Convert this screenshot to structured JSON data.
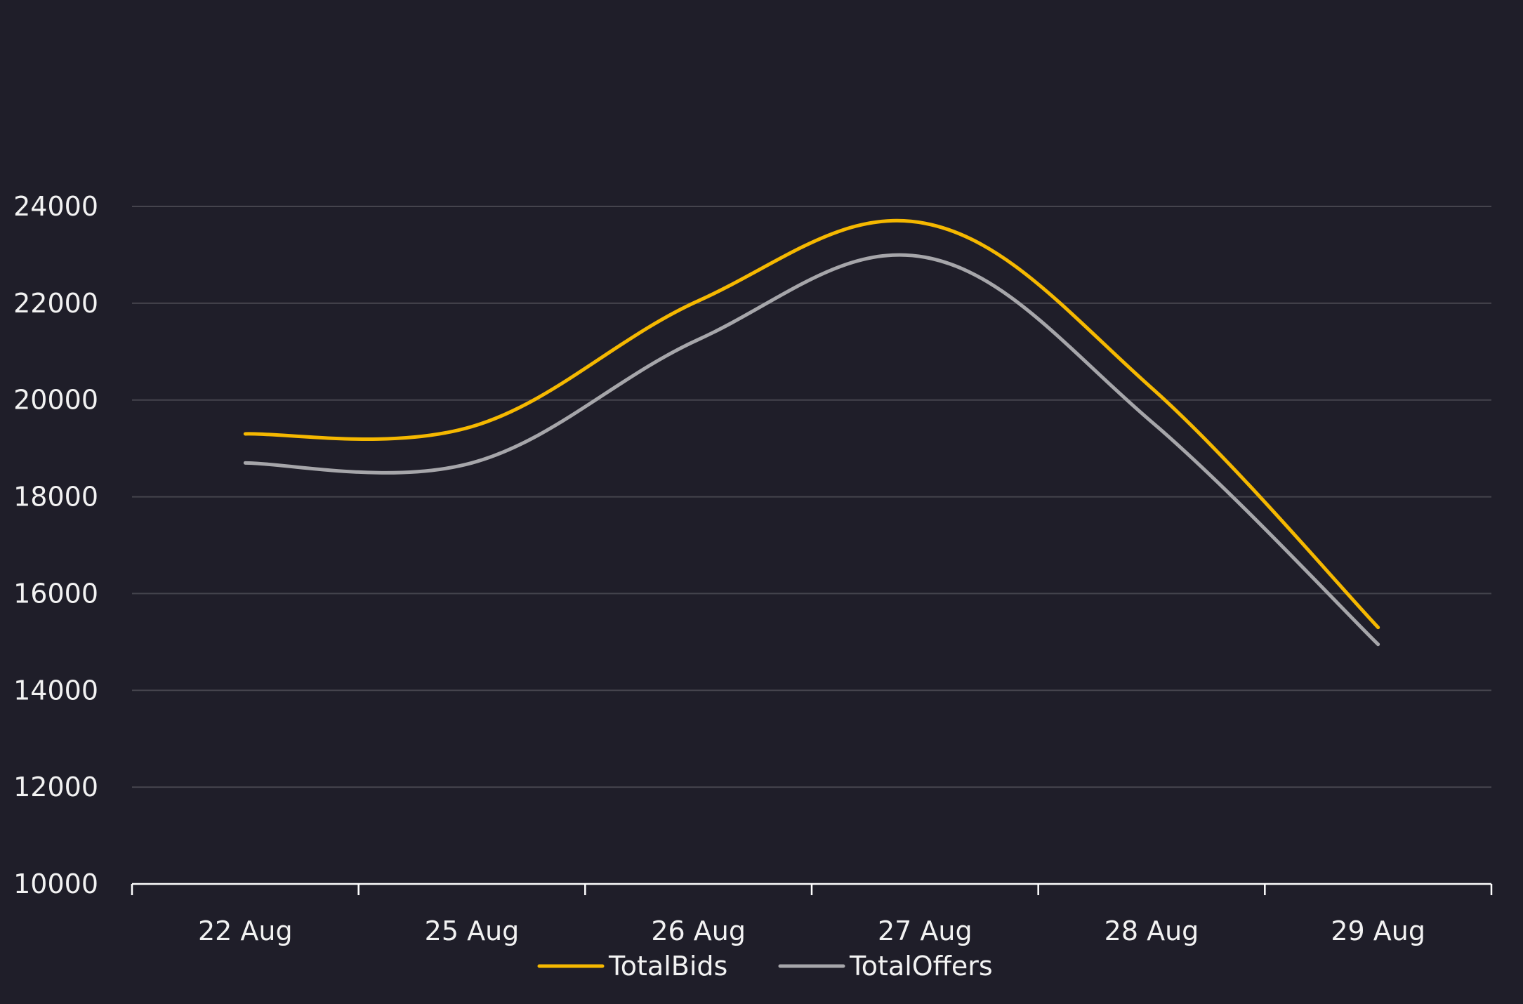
{
  "chart_data": {
    "type": "line",
    "title": "",
    "xlabel": "",
    "ylabel": "",
    "categories": [
      "22 Aug",
      "25 Aug",
      "26 Aug",
      "27 Aug",
      "28 Aug",
      "29 Aug"
    ],
    "series": [
      {
        "name": "TotalBids",
        "color": "#f5b800",
        "values": [
          19300,
          19450,
          22050,
          23650,
          20250,
          15300
        ]
      },
      {
        "name": "TotalOffers",
        "color": "#a6a6aa",
        "values": [
          18700,
          18700,
          21250,
          22950,
          19550,
          14950
        ]
      }
    ],
    "ylim": [
      10000,
      24000
    ],
    "yticks": [
      10000,
      12000,
      14000,
      16000,
      18000,
      20000,
      22000,
      24000
    ],
    "grid": true,
    "legend_position": "bottom-center",
    "colors": {
      "background": "#1f1e29",
      "grid": "#45444d",
      "axis": "#ffffff",
      "text": "#f2f2f2"
    }
  }
}
